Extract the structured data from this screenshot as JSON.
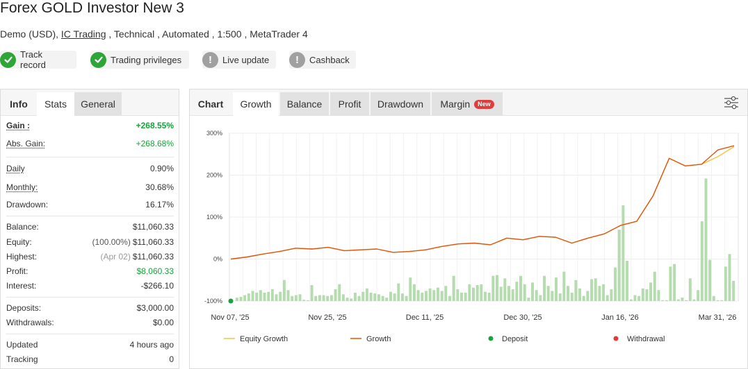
{
  "header": {
    "title": "Forex GOLD Investor New 3",
    "account_type": "Demo (USD),",
    "broker": "IC Trading",
    "details": " , Technical , Automated , 1:500 , MetaTrader 4"
  },
  "badges": [
    {
      "label": "Track record",
      "status": "ok"
    },
    {
      "label": "Trading privileges",
      "status": "ok"
    },
    {
      "label": "Live update",
      "status": "warn"
    },
    {
      "label": "Cashback",
      "status": "warn"
    }
  ],
  "left_tabs": {
    "info": "Info",
    "stats": "Stats",
    "general": "General"
  },
  "stats": {
    "gain": {
      "label": "Gain :",
      "value": "+268.55%"
    },
    "abs_gain": {
      "label": "Abs. Gain:",
      "value": "+268.68%"
    },
    "daily": {
      "label": "Daily",
      "value": "0.90%"
    },
    "monthly": {
      "label": "Monthly:",
      "value": "30.68%"
    },
    "drawdown": {
      "label": "Drawdown:",
      "value": "16.17%"
    },
    "balance": {
      "label": "Balance:",
      "value": "$11,060.33"
    },
    "equity": {
      "label": "Equity:",
      "prefix": "(100.00%)",
      "value": "$11,060.33"
    },
    "highest": {
      "label": "Highest:",
      "prefix": "(Apr 02)",
      "value": "$11,060.33"
    },
    "profit": {
      "label": "Profit:",
      "value": "$8,060.33"
    },
    "interest": {
      "label": "Interest:",
      "value": "-$266.10"
    },
    "deposits": {
      "label": "Deposits:",
      "value": "$3,000.00"
    },
    "withdrawals": {
      "label": "Withdrawals:",
      "value": "$0.00"
    },
    "updated": {
      "label": "Updated",
      "value": "4 hours ago"
    },
    "tracking": {
      "label": "Tracking",
      "value": "0"
    }
  },
  "chart_tabs": {
    "chart": "Chart",
    "growth": "Growth",
    "balance": "Balance",
    "profit": "Profit",
    "drawdown": "Drawdown",
    "margin": "Margin",
    "new_badge": "New"
  },
  "colors": {
    "growth": "#e0550f",
    "equity": "#f5c242",
    "bars": "#b5dcae",
    "deposit": "#19a33a",
    "withdrawal": "#e53935"
  },
  "chart_data": {
    "type": "line",
    "ylim": [
      -100,
      300
    ],
    "y_ticks": [
      -100,
      0,
      100,
      200,
      300
    ],
    "y_tick_labels": [
      "-100%",
      "0%",
      "100%",
      "200%",
      "300%"
    ],
    "x_tick_labels": [
      "Nov 07, '25",
      "Nov 25, '25",
      "Dec 11, '25",
      "Dec 30, '25",
      "Jan 16, '26",
      "Mar 31, '26"
    ],
    "legend": [
      "Equity Growth",
      "Growth",
      "Deposit",
      "Withdrawal"
    ],
    "legend_position": "bottom",
    "grid": true,
    "series": [
      {
        "name": "Growth",
        "values": [
          0,
          5,
          12,
          18,
          26,
          24,
          28,
          20,
          22,
          24,
          16,
          18,
          22,
          30,
          36,
          38,
          34,
          50,
          46,
          54,
          52,
          38,
          50,
          60,
          80,
          90,
          150,
          240,
          222,
          226,
          260,
          270
        ]
      },
      {
        "name": "Equity Growth",
        "values": [
          0,
          5,
          12,
          18,
          26,
          24,
          28,
          20,
          22,
          24,
          16,
          18,
          22,
          30,
          36,
          38,
          34,
          50,
          46,
          54,
          52,
          38,
          50,
          60,
          80,
          90,
          150,
          240,
          222,
          226,
          244,
          268
        ]
      }
    ],
    "bars": [
      8,
      10,
      14,
      18,
      24,
      20,
      26,
      20,
      22,
      28,
      16,
      22,
      50,
      26,
      12,
      14,
      16,
      3,
      2,
      38,
      12,
      14,
      14,
      12,
      14,
      28,
      40,
      16,
      8,
      6,
      20,
      12,
      22,
      30,
      20,
      18,
      16,
      12,
      8,
      22,
      18,
      42,
      18,
      12,
      56,
      40,
      26,
      20,
      24,
      30,
      26,
      32,
      24,
      36,
      12,
      60,
      28,
      20,
      20,
      40,
      32,
      38,
      40,
      22,
      20,
      60,
      62,
      34,
      54,
      36,
      28,
      46,
      60,
      40,
      8,
      44,
      26,
      14,
      60,
      36,
      24,
      56,
      18,
      70,
      36,
      20,
      50,
      30,
      12,
      24,
      52,
      54,
      36,
      40,
      14,
      28,
      80,
      170,
      228,
      96,
      4,
      14,
      12,
      30,
      28,
      44,
      70,
      26,
      2,
      2,
      82,
      88,
      4,
      8,
      2,
      54,
      4,
      26,
      190,
      292,
      98,
      12,
      2,
      2,
      82,
      112,
      48
    ],
    "deposits": [
      0
    ]
  }
}
